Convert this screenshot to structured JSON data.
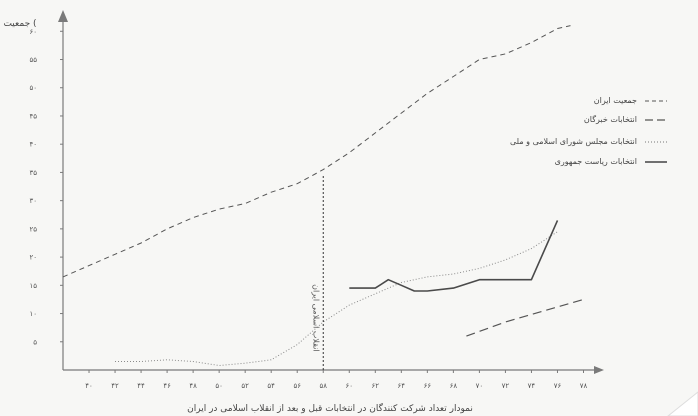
{
  "chart_data": {
    "type": "line",
    "ylabel": "جمعیت (",
    "caption": "نمودار تعداد شرکت کنندگان در انتخابات قبل و بعد از انقلاب اسلامی در ایران",
    "annotation": "انقلاب اسلامی ایران",
    "revolution_x": 58,
    "xlim": [
      38,
      78.5
    ],
    "ylim": [
      0,
      62
    ],
    "x_ticks": [
      40,
      42,
      44,
      46,
      48,
      50,
      52,
      54,
      56,
      58,
      60,
      62,
      64,
      66,
      68,
      70,
      72,
      74,
      76,
      78
    ],
    "x_tick_labels": [
      "۴۰",
      "۴۲",
      "۴۴",
      "۴۶",
      "۴۸",
      "۵۰",
      "۵۲",
      "۵۴",
      "۵۶",
      "۵۸",
      "۶۰",
      "۶۲",
      "۶۴",
      "۶۶",
      "۶۸",
      "۷۰",
      "۷۲",
      "۷۴",
      "۷۶",
      "۷۸"
    ],
    "y_ticks": [
      5,
      10,
      15,
      20,
      25,
      30,
      35,
      40,
      45,
      50,
      55,
      60
    ],
    "y_tick_labels": [
      "۵",
      "۱۰",
      "۱۵",
      "۲۰",
      "۲۵",
      "۳۰",
      "۳۵",
      "۴۰",
      "۴۵",
      "۵۰",
      "۵۵",
      "۶۰"
    ],
    "series": [
      {
        "name": "جمعیت ایران",
        "style": "dashed",
        "x": [
          38,
          40,
          42,
          44,
          46,
          48,
          50,
          52,
          54,
          56,
          58,
          60,
          62,
          64,
          66,
          68,
          70,
          72,
          74,
          76,
          77
        ],
        "y": [
          16.5,
          18.5,
          20.5,
          22.5,
          25,
          27,
          28.5,
          29.5,
          31.5,
          33,
          35.5,
          38.5,
          42,
          45.5,
          49,
          52,
          55,
          56,
          58,
          60.5,
          61
        ]
      },
      {
        "name": "انتخابات خبرگان",
        "style": "long-dashed",
        "x": [
          69,
          72,
          75,
          78
        ],
        "y": [
          6,
          8.5,
          10.5,
          12.5
        ]
      },
      {
        "name": "انتخابات مجلس شورای اسلامی و ملی",
        "style": "dotted",
        "x": [
          42,
          44,
          46,
          48,
          50,
          52,
          54,
          56,
          58,
          60,
          62,
          64,
          66,
          68,
          70,
          72,
          74,
          76
        ],
        "y": [
          1.5,
          1.5,
          1.8,
          1.5,
          0.8,
          1.2,
          1.8,
          4.5,
          8.5,
          11.5,
          13.5,
          15.5,
          16.5,
          17,
          18,
          19.5,
          21.5,
          24.5
        ]
      },
      {
        "name": "انتخابات ریاست جمهوری",
        "style": "solid",
        "x": [
          60,
          61,
          62,
          63,
          64,
          65,
          66,
          68,
          70,
          72,
          74,
          76
        ],
        "y": [
          14.5,
          14.5,
          14.5,
          16,
          15,
          14,
          14,
          14.5,
          16,
          16,
          16,
          26.5
        ]
      }
    ]
  },
  "colors": {
    "line": "#555555",
    "axis": "#7a7a7a",
    "background": "#f7f7f5"
  }
}
